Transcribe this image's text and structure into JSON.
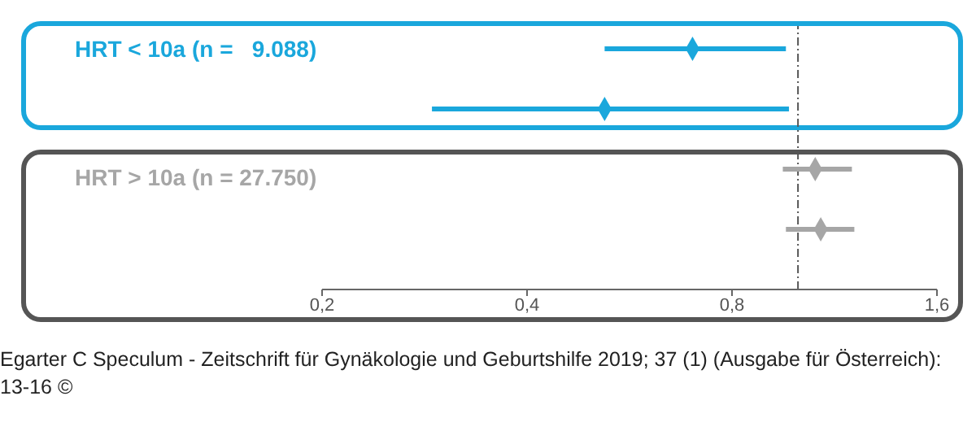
{
  "chart_data": {
    "type": "scatter",
    "orientation": "horizontal",
    "categories": [
      null,
      null,
      null,
      null
    ],
    "series": [
      {
        "name": "HRT < 10a (n =   9.088)",
        "color": "#1aa7dc",
        "values": [
          0.7,
          0.52,
          null,
          null
        ],
        "errors": [
          [
            0.52,
            0.96
          ],
          [
            0.29,
            0.97
          ],
          null,
          null
        ]
      },
      {
        "name": "HRT > 10a (n = 27.750)",
        "color": "#a6a6a6",
        "values": [
          null,
          null,
          1.06,
          1.08
        ],
        "errors": [
          null,
          null,
          [
            0.95,
            1.2
          ],
          [
            0.96,
            1.21
          ]
        ]
      }
    ],
    "marker": "diamond",
    "log": "x",
    "xlim": [
      0.2,
      1.6
    ],
    "xticks": [
      {
        "value": 0.2,
        "label": "0,2"
      },
      {
        "value": 0.4,
        "label": "0,4"
      },
      {
        "value": 0.8,
        "label": "0,8"
      },
      {
        "value": 1.6,
        "label": "1,6"
      }
    ],
    "ref_lines": [
      {
        "axis": "x",
        "value": 1,
        "color": "#555555",
        "line_style": "dashed"
      }
    ],
    "annotations": [
      "Egarter C Speculum - Zeitschrift für Gynäkologie und Geburtshilfe 2019; 37 (1) (Ausgabe für Österreich): 13-16 ©"
    ]
  }
}
